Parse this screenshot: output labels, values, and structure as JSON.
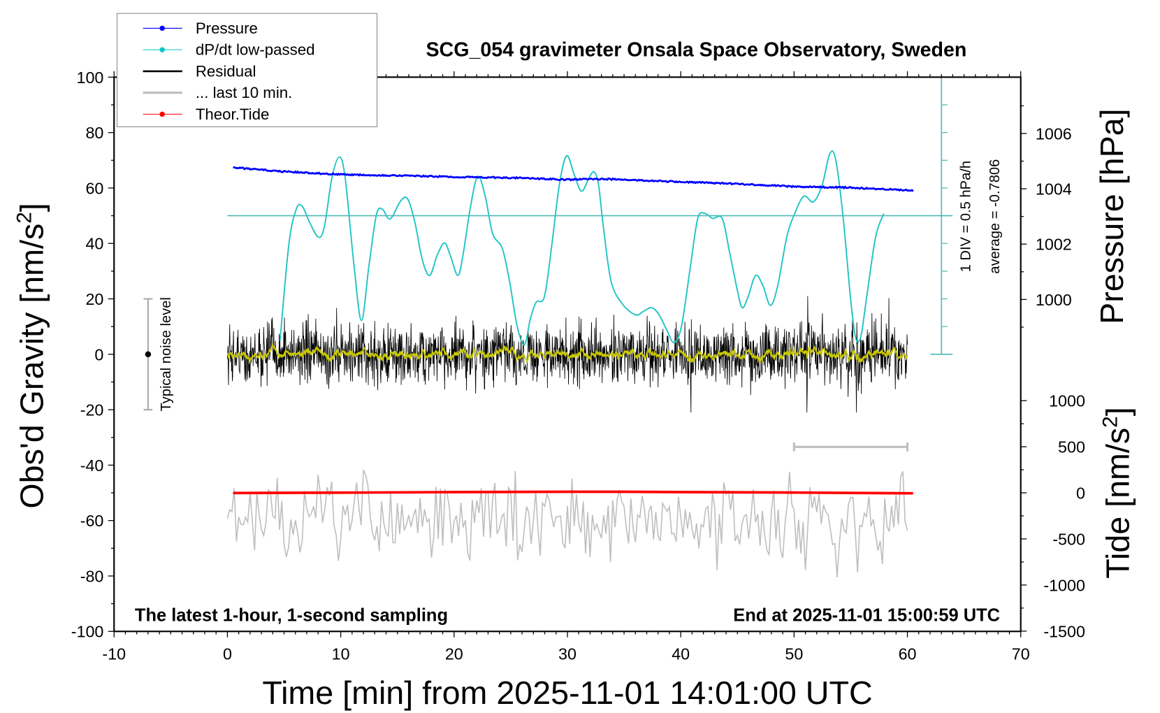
{
  "chart_data": {
    "type": "line",
    "title": "SCG_054 gravimeter Onsala Space Observatory, Sweden",
    "xlabel": "Time [min] from 2025-11-01 14:01:00 UTC",
    "ylabel_left": "Obs'd Gravity [nm/s",
    "ylabel_left_sup": "2",
    "ylabel_left_end": "]",
    "ylabel_right_top": "Pressure [hPa]",
    "ylabel_right_bottom": "Tide [nm/s",
    "ylabel_right_bottom_sup": "2",
    "ylabel_right_bottom_end": "]",
    "xlim": [
      -10,
      70
    ],
    "ylim_left": [
      -100,
      100
    ],
    "x_ticks": [
      "-10",
      "0",
      "10",
      "20",
      "30",
      "40",
      "50",
      "60",
      "70"
    ],
    "y_ticks_left": [
      "100",
      "80",
      "60",
      "40",
      "20",
      "0",
      "-20",
      "-40",
      "-60",
      "-80",
      "-100"
    ],
    "pressure_ticks": [
      "1006",
      "1004",
      "1002",
      "1000"
    ],
    "tide_ticks": [
      "1000",
      "500",
      "0",
      "-500",
      "-1000",
      "-1500"
    ],
    "annotation_left": "The latest 1-hour, 1-second sampling",
    "annotation_right": "End at 2025-11-01 15:00:59 UTC",
    "noise_label": "Typical noise level",
    "noise_level": {
      "time": -7,
      "center": 0,
      "halfwidth": 20
    },
    "div_label": "1 DIV = 0.5 hPa/h",
    "average_label": "average = -0.7806",
    "dpdt_average": -0.7806,
    "dpdt_per_div": 0.5,
    "legend": [
      {
        "label": "Pressure",
        "color": "#0000ff"
      },
      {
        "label": "dP/dt low-passed",
        "color": "#00c8c8"
      },
      {
        "label": "Residual",
        "color": "#000000"
      },
      {
        "label": "... last 10 min.",
        "color": "#bebebe"
      },
      {
        "label": "Theor.Tide",
        "color": "#ff0000"
      }
    ],
    "colors": {
      "pressure": "#0000ff",
      "dpdt": "#20c4c4",
      "dpdt_axis": "#4cb8b8",
      "residual": "#000000",
      "smoothed": "#c8c800",
      "last10": "#bebebe",
      "tide": "#ff0000"
    },
    "last10_window": [
      50,
      60
    ],
    "pressure_hpa": [
      [
        0.5,
        1004.77
      ],
      [
        5,
        1004.62
      ],
      [
        10,
        1004.52
      ],
      [
        15,
        1004.48
      ],
      [
        20,
        1004.43
      ],
      [
        25,
        1004.4
      ],
      [
        30,
        1004.33
      ],
      [
        33,
        1004.36
      ],
      [
        40,
        1004.25
      ],
      [
        45,
        1004.18
      ],
      [
        50,
        1004.08
      ],
      [
        55,
        1004.04
      ],
      [
        60,
        1003.95
      ],
      [
        60.5,
        1003.93
      ]
    ],
    "dpdt_hpa_per_h": [
      [
        4.64,
        -3.04
      ],
      [
        5.42,
        -1.3
      ],
      [
        6.08,
        -0.66
      ],
      [
        6.6,
        -0.61
      ],
      [
        7.25,
        -0.9
      ],
      [
        8.04,
        -1.17
      ],
      [
        8.56,
        -0.97
      ],
      [
        9.22,
        -0.1
      ],
      [
        9.87,
        0.28
      ],
      [
        10.39,
        -0.1
      ],
      [
        11.18,
        -1.7
      ],
      [
        11.83,
        -2.67
      ],
      [
        12.48,
        -1.7
      ],
      [
        13.14,
        -0.77
      ],
      [
        13.66,
        -0.66
      ],
      [
        14.18,
        -0.83
      ],
      [
        14.58,
        -0.79
      ],
      [
        15.23,
        -0.53
      ],
      [
        15.88,
        -0.47
      ],
      [
        16.54,
        -0.9
      ],
      [
        17.19,
        -1.57
      ],
      [
        17.84,
        -1.86
      ],
      [
        18.5,
        -1.5
      ],
      [
        19.15,
        -1.27
      ],
      [
        19.67,
        -1.5
      ],
      [
        20.33,
        -1.86
      ],
      [
        20.78,
        -1.5
      ],
      [
        21.44,
        -0.63
      ],
      [
        22.09,
        -0.07
      ],
      [
        22.75,
        -0.43
      ],
      [
        23.4,
        -1.1
      ],
      [
        24.25,
        -1.37
      ],
      [
        24.9,
        -1.97
      ],
      [
        25.56,
        -2.77
      ],
      [
        26.21,
        -3.11
      ],
      [
        26.73,
        -2.64
      ],
      [
        27.25,
        -2.34
      ],
      [
        27.97,
        -2.24
      ],
      [
        28.63,
        -1.3
      ],
      [
        29.28,
        -0.23
      ],
      [
        29.93,
        0.3
      ],
      [
        30.59,
        -0.03
      ],
      [
        31.24,
        -0.34
      ],
      [
        31.9,
        -0.1
      ],
      [
        32.35,
        0.01
      ],
      [
        32.75,
        -0.23
      ],
      [
        33.2,
        -1.03
      ],
      [
        33.86,
        -1.97
      ],
      [
        34.84,
        -2.37
      ],
      [
        36.01,
        -2.57
      ],
      [
        36.67,
        -2.51
      ],
      [
        37.45,
        -2.44
      ],
      [
        38.1,
        -2.57
      ],
      [
        38.76,
        -2.84
      ],
      [
        39.41,
        -3.07
      ],
      [
        40.07,
        -2.77
      ],
      [
        40.85,
        -1.7
      ],
      [
        41.5,
        -0.83
      ],
      [
        42.16,
        -0.74
      ],
      [
        42.81,
        -0.83
      ],
      [
        43.66,
        -0.83
      ],
      [
        44.31,
        -1.44
      ],
      [
        44.97,
        -2.1
      ],
      [
        45.42,
        -2.44
      ],
      [
        45.95,
        -2.24
      ],
      [
        46.6,
        -1.86
      ],
      [
        47.25,
        -2.04
      ],
      [
        47.91,
        -2.4
      ],
      [
        48.56,
        -2.04
      ],
      [
        49.35,
        -1.17
      ],
      [
        50.0,
        -0.77
      ],
      [
        50.85,
        -0.43
      ],
      [
        51.7,
        -0.53
      ],
      [
        52.48,
        -0.23
      ],
      [
        53.14,
        0.33
      ],
      [
        53.66,
        0.24
      ],
      [
        54.31,
        -0.77
      ],
      [
        54.97,
        -2.24
      ],
      [
        55.42,
        -2.97
      ],
      [
        55.88,
        -2.97
      ],
      [
        56.41,
        -2.24
      ],
      [
        57.19,
        -1.17
      ],
      [
        57.91,
        -0.74
      ]
    ],
    "tide_nms2": [
      [
        0.5,
        -2
      ],
      [
        10,
        2
      ],
      [
        20,
        8
      ],
      [
        30,
        12
      ],
      [
        35,
        12
      ],
      [
        40,
        8
      ],
      [
        50,
        3
      ],
      [
        60.5,
        -5
      ]
    ],
    "residual": {
      "start": 0,
      "end": 60,
      "std_nms2": 6,
      "max_abs": 21
    },
    "last10_offset": -60
  }
}
